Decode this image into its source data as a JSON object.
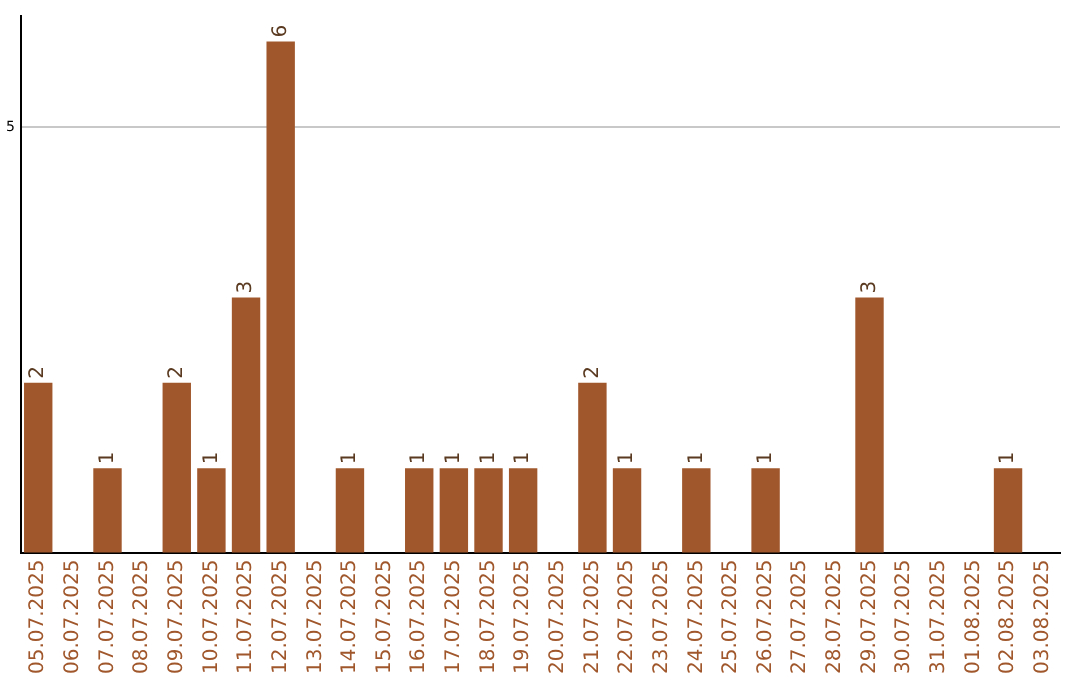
{
  "chart_data": {
    "type": "bar",
    "categories": [
      "05.07.2025",
      "06.07.2025",
      "07.07.2025",
      "08.07.2025",
      "09.07.2025",
      "10.07.2025",
      "11.07.2025",
      "12.07.2025",
      "13.07.2025",
      "14.07.2025",
      "15.07.2025",
      "16.07.2025",
      "17.07.2025",
      "18.07.2025",
      "19.07.2025",
      "20.07.2025",
      "21.07.2025",
      "22.07.2025",
      "23.07.2025",
      "24.07.2025",
      "25.07.2025",
      "26.07.2025",
      "27.07.2025",
      "28.07.2025",
      "29.07.2025",
      "30.07.2025",
      "31.07.2025",
      "01.08.2025",
      "02.08.2025",
      "03.08.2025"
    ],
    "values": [
      2,
      0,
      1,
      0,
      2,
      1,
      3,
      6,
      0,
      1,
      0,
      1,
      1,
      1,
      1,
      0,
      2,
      1,
      0,
      1,
      0,
      1,
      0,
      0,
      3,
      0,
      0,
      0,
      1,
      0
    ],
    "value_labels": [
      "2",
      null,
      "1",
      null,
      "2",
      "1",
      "3",
      "6",
      null,
      "1",
      null,
      "1",
      "1",
      "1",
      "1",
      null,
      "2",
      "1",
      null,
      "1",
      null,
      "1",
      null,
      null,
      "3",
      null,
      null,
      null,
      "1",
      null
    ],
    "color": "#a0572b",
    "ylim": [
      0,
      6.3
    ],
    "yticks": [
      {
        "value": 0,
        "label": null
      },
      5
    ],
    "grid": "y",
    "legend": false
  }
}
